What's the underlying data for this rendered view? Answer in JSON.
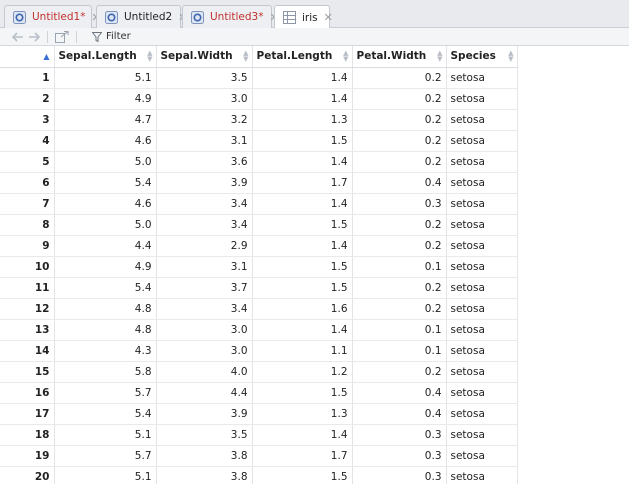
{
  "tabs": [
    {
      "label": "Untitled1*",
      "modified": true,
      "icon": "r-script-icon"
    },
    {
      "label": "Untitled2",
      "modified": false,
      "icon": "r-script-icon"
    },
    {
      "label": "Untitled3*",
      "modified": true,
      "icon": "r-script-icon"
    },
    {
      "label": "iris",
      "modified": false,
      "icon": "table-icon",
      "active": true
    }
  ],
  "toolbar": {
    "filter_label": "Filter"
  },
  "table": {
    "columns": [
      "",
      "Sepal.Length",
      "Sepal.Width",
      "Petal.Length",
      "Petal.Width",
      "Species"
    ],
    "rows": [
      [
        "1",
        "5.1",
        "3.5",
        "1.4",
        "0.2",
        "setosa"
      ],
      [
        "2",
        "4.9",
        "3.0",
        "1.4",
        "0.2",
        "setosa"
      ],
      [
        "3",
        "4.7",
        "3.2",
        "1.3",
        "0.2",
        "setosa"
      ],
      [
        "4",
        "4.6",
        "3.1",
        "1.5",
        "0.2",
        "setosa"
      ],
      [
        "5",
        "5.0",
        "3.6",
        "1.4",
        "0.2",
        "setosa"
      ],
      [
        "6",
        "5.4",
        "3.9",
        "1.7",
        "0.4",
        "setosa"
      ],
      [
        "7",
        "4.6",
        "3.4",
        "1.4",
        "0.3",
        "setosa"
      ],
      [
        "8",
        "5.0",
        "3.4",
        "1.5",
        "0.2",
        "setosa"
      ],
      [
        "9",
        "4.4",
        "2.9",
        "1.4",
        "0.2",
        "setosa"
      ],
      [
        "10",
        "4.9",
        "3.1",
        "1.5",
        "0.1",
        "setosa"
      ],
      [
        "11",
        "5.4",
        "3.7",
        "1.5",
        "0.2",
        "setosa"
      ],
      [
        "12",
        "4.8",
        "3.4",
        "1.6",
        "0.2",
        "setosa"
      ],
      [
        "13",
        "4.8",
        "3.0",
        "1.4",
        "0.1",
        "setosa"
      ],
      [
        "14",
        "4.3",
        "3.0",
        "1.1",
        "0.1",
        "setosa"
      ],
      [
        "15",
        "5.8",
        "4.0",
        "1.2",
        "0.2",
        "setosa"
      ],
      [
        "16",
        "5.7",
        "4.4",
        "1.5",
        "0.4",
        "setosa"
      ],
      [
        "17",
        "5.4",
        "3.9",
        "1.3",
        "0.4",
        "setosa"
      ],
      [
        "18",
        "5.1",
        "3.5",
        "1.4",
        "0.3",
        "setosa"
      ],
      [
        "19",
        "5.7",
        "3.8",
        "1.7",
        "0.3",
        "setosa"
      ],
      [
        "20",
        "5.1",
        "3.8",
        "1.5",
        "0.3",
        "setosa"
      ]
    ]
  },
  "colors": {
    "modified_tab_text": "#c2302e",
    "sort_active": "#3a6fd8"
  }
}
